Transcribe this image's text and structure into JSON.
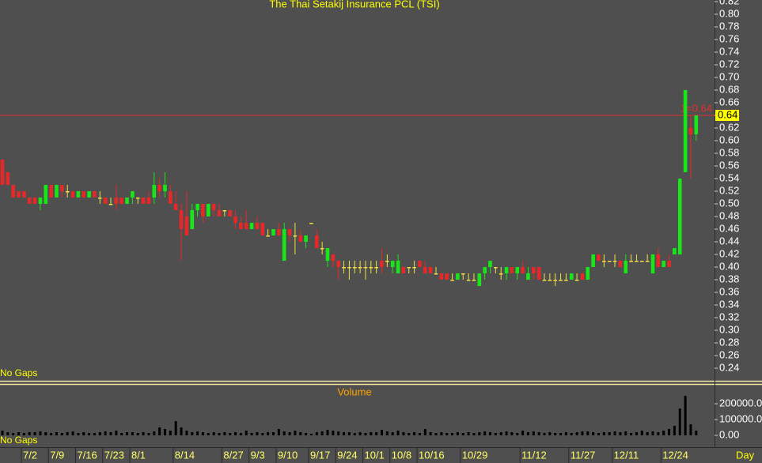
{
  "chart_data": {
    "type": "candlestick",
    "title": "The Thai Setakij Insurance PCL (TSI)",
    "x_unit": "Day",
    "gap_label": "No Gaps",
    "colors": {
      "up": "#19e619",
      "down": "#e62828",
      "flat": "#f0e040"
    },
    "categories": [
      null,
      null,
      null,
      null,
      "7/2",
      null,
      null,
      null,
      null,
      "7/9",
      null,
      null,
      null,
      null,
      "7/16",
      null,
      null,
      null,
      null,
      "7/23",
      null,
      null,
      null,
      null,
      "8/1",
      null,
      null,
      null,
      null,
      null,
      null,
      null,
      "8/14",
      null,
      null,
      null,
      null,
      null,
      null,
      null,
      null,
      "8/27",
      null,
      null,
      null,
      null,
      "9/3",
      null,
      null,
      null,
      null,
      "9/10",
      null,
      null,
      null,
      null,
      null,
      "9/17",
      null,
      null,
      null,
      null,
      "9/24",
      null,
      null,
      null,
      null,
      "10/1",
      null,
      null,
      null,
      null,
      "10/8",
      null,
      null,
      null,
      null,
      "10/16",
      null,
      null,
      null,
      null,
      null,
      null,
      null,
      "10/29",
      null,
      null,
      null,
      null,
      null,
      null,
      null,
      null,
      null,
      null,
      "11/12",
      null,
      null,
      null,
      null,
      null,
      null,
      null,
      null,
      "11/27",
      null,
      null,
      null,
      null,
      null,
      null,
      null,
      "12/11",
      null,
      null,
      null,
      null,
      null,
      null,
      null,
      null,
      "12/24",
      null,
      null,
      null,
      null,
      null,
      null
    ],
    "ohlc": [
      [
        0.57,
        0.57,
        0.53,
        0.53
      ],
      [
        0.55,
        0.55,
        0.53,
        0.53
      ],
      [
        0.53,
        0.53,
        0.51,
        0.51
      ],
      [
        0.52,
        0.52,
        0.51,
        0.51
      ],
      [
        0.52,
        0.52,
        0.51,
        0.51
      ],
      [
        0.51,
        0.51,
        0.5,
        0.5
      ],
      [
        0.51,
        0.51,
        0.5,
        0.5
      ],
      [
        0.5,
        0.51,
        0.49,
        0.51
      ],
      [
        0.5,
        0.53,
        0.5,
        0.53
      ],
      [
        0.53,
        0.53,
        0.51,
        0.51
      ],
      [
        0.51,
        0.53,
        0.51,
        0.53
      ],
      [
        0.53,
        0.53,
        0.51,
        0.52
      ],
      [
        0.52,
        0.53,
        0.51,
        0.52
      ],
      [
        0.52,
        0.52,
        0.51,
        0.51
      ],
      [
        0.51,
        0.52,
        0.51,
        0.52
      ],
      [
        0.52,
        0.52,
        0.51,
        0.51
      ],
      [
        0.51,
        0.52,
        0.51,
        0.52
      ],
      [
        0.52,
        0.52,
        0.51,
        0.51
      ],
      [
        0.51,
        0.52,
        0.5,
        0.51
      ],
      [
        0.51,
        0.51,
        0.5,
        0.5
      ],
      [
        0.5,
        0.51,
        0.5,
        0.5
      ],
      [
        0.51,
        0.53,
        0.49,
        0.5
      ],
      [
        0.51,
        0.51,
        0.5,
        0.5
      ],
      [
        0.5,
        0.51,
        0.5,
        0.51
      ],
      [
        0.51,
        0.52,
        0.5,
        0.52
      ],
      [
        0.51,
        0.51,
        0.5,
        0.51
      ],
      [
        0.51,
        0.51,
        0.5,
        0.5
      ],
      [
        0.51,
        0.52,
        0.5,
        0.5
      ],
      [
        0.51,
        0.55,
        0.5,
        0.53
      ],
      [
        0.53,
        0.54,
        0.51,
        0.52
      ],
      [
        0.52,
        0.55,
        0.51,
        0.53
      ],
      [
        0.52,
        0.53,
        0.5,
        0.5
      ],
      [
        0.5,
        0.52,
        0.49,
        0.49
      ],
      [
        0.49,
        0.5,
        0.41,
        0.46
      ],
      [
        0.48,
        0.52,
        0.45,
        0.45
      ],
      [
        0.46,
        0.5,
        0.46,
        0.49
      ],
      [
        0.49,
        0.5,
        0.48,
        0.5
      ],
      [
        0.5,
        0.5,
        0.47,
        0.48
      ],
      [
        0.48,
        0.5,
        0.48,
        0.5
      ],
      [
        0.5,
        0.5,
        0.48,
        0.49
      ],
      [
        0.49,
        0.5,
        0.48,
        0.48
      ],
      [
        0.49,
        0.49,
        0.48,
        0.49
      ],
      [
        0.49,
        0.49,
        0.48,
        0.48
      ],
      [
        0.48,
        0.49,
        0.46,
        0.47
      ],
      [
        0.47,
        0.48,
        0.46,
        0.46
      ],
      [
        0.47,
        0.49,
        0.46,
        0.46
      ],
      [
        0.46,
        0.47,
        0.46,
        0.47
      ],
      [
        0.47,
        0.48,
        0.46,
        0.46
      ],
      [
        0.47,
        0.47,
        0.45,
        0.45
      ],
      [
        0.45,
        0.46,
        0.45,
        0.45
      ],
      [
        0.45,
        0.46,
        0.45,
        0.46
      ],
      [
        0.46,
        0.47,
        0.45,
        0.45
      ],
      [
        0.41,
        0.47,
        0.41,
        0.46
      ],
      [
        0.46,
        0.46,
        0.44,
        0.45
      ],
      [
        0.45,
        0.47,
        0.42,
        0.45
      ],
      [
        0.45,
        0.46,
        0.44,
        0.44
      ],
      [
        0.44,
        0.45,
        0.43,
        0.45
      ],
      [
        0.47,
        0.47,
        0.47,
        0.47
      ],
      [
        0.45,
        0.46,
        0.43,
        0.43
      ],
      [
        0.43,
        0.44,
        0.42,
        0.43
      ],
      [
        0.41,
        0.43,
        0.4,
        0.43
      ],
      [
        0.42,
        0.42,
        0.4,
        0.41
      ],
      [
        0.41,
        0.41,
        0.38,
        0.4
      ],
      [
        0.4,
        0.41,
        0.39,
        0.4
      ],
      [
        0.4,
        0.41,
        0.38,
        0.4
      ],
      [
        0.4,
        0.41,
        0.39,
        0.4
      ],
      [
        0.4,
        0.41,
        0.39,
        0.4
      ],
      [
        0.4,
        0.41,
        0.38,
        0.4
      ],
      [
        0.4,
        0.41,
        0.39,
        0.4
      ],
      [
        0.4,
        0.41,
        0.39,
        0.4
      ],
      [
        0.41,
        0.43,
        0.39,
        0.4
      ],
      [
        0.41,
        0.42,
        0.4,
        0.41
      ],
      [
        0.4,
        0.41,
        0.39,
        0.41
      ],
      [
        0.39,
        0.42,
        0.39,
        0.41
      ],
      [
        0.4,
        0.4,
        0.39,
        0.39
      ],
      [
        0.4,
        0.4,
        0.39,
        0.4
      ],
      [
        0.4,
        0.41,
        0.39,
        0.4
      ],
      [
        0.41,
        0.41,
        0.4,
        0.4
      ],
      [
        0.4,
        0.41,
        0.39,
        0.39
      ],
      [
        0.4,
        0.4,
        0.39,
        0.39
      ],
      [
        0.39,
        0.4,
        0.39,
        0.39
      ],
      [
        0.39,
        0.39,
        0.38,
        0.38
      ],
      [
        0.39,
        0.39,
        0.38,
        0.38
      ],
      [
        0.38,
        0.39,
        0.38,
        0.38
      ],
      [
        0.38,
        0.39,
        0.38,
        0.39
      ],
      [
        0.39,
        0.39,
        0.38,
        0.39
      ],
      [
        0.38,
        0.39,
        0.38,
        0.38
      ],
      [
        0.38,
        0.39,
        0.38,
        0.38
      ],
      [
        0.37,
        0.39,
        0.37,
        0.39
      ],
      [
        0.39,
        0.4,
        0.38,
        0.4
      ],
      [
        0.4,
        0.41,
        0.39,
        0.41
      ],
      [
        0.4,
        0.4,
        0.39,
        0.4
      ],
      [
        0.39,
        0.4,
        0.38,
        0.39
      ],
      [
        0.39,
        0.4,
        0.38,
        0.4
      ],
      [
        0.4,
        0.4,
        0.39,
        0.39
      ],
      [
        0.39,
        0.4,
        0.38,
        0.4
      ],
      [
        0.4,
        0.41,
        0.39,
        0.39
      ],
      [
        0.38,
        0.4,
        0.38,
        0.39
      ],
      [
        0.4,
        0.4,
        0.38,
        0.39
      ],
      [
        0.4,
        0.4,
        0.38,
        0.38
      ],
      [
        0.38,
        0.39,
        0.38,
        0.38
      ],
      [
        0.38,
        0.39,
        0.38,
        0.38
      ],
      [
        0.38,
        0.39,
        0.37,
        0.38
      ],
      [
        0.38,
        0.39,
        0.38,
        0.38
      ],
      [
        0.38,
        0.39,
        0.38,
        0.38
      ],
      [
        0.38,
        0.39,
        0.38,
        0.39
      ],
      [
        0.38,
        0.39,
        0.38,
        0.38
      ],
      [
        0.39,
        0.39,
        0.38,
        0.38
      ],
      [
        0.38,
        0.4,
        0.38,
        0.4
      ],
      [
        0.4,
        0.42,
        0.4,
        0.42
      ],
      [
        0.42,
        0.42,
        0.41,
        0.41
      ],
      [
        0.41,
        0.42,
        0.4,
        0.41
      ],
      [
        0.41,
        0.41,
        0.41,
        0.41
      ],
      [
        0.41,
        0.42,
        0.4,
        0.41
      ],
      [
        0.41,
        0.41,
        0.4,
        0.4
      ],
      [
        0.39,
        0.42,
        0.39,
        0.41
      ],
      [
        0.41,
        0.42,
        0.41,
        0.41
      ],
      [
        0.41,
        0.42,
        0.41,
        0.41
      ],
      [
        0.41,
        0.41,
        0.41,
        0.41
      ],
      [
        0.41,
        0.42,
        0.41,
        0.41
      ],
      [
        0.39,
        0.42,
        0.39,
        0.42
      ],
      [
        0.42,
        0.43,
        0.4,
        0.4
      ],
      [
        0.4,
        0.41,
        0.4,
        0.41
      ],
      [
        0.41,
        0.42,
        0.4,
        0.4
      ],
      [
        0.42,
        0.43,
        0.42,
        0.43
      ],
      [
        0.42,
        0.54,
        0.42,
        0.54
      ],
      [
        0.55,
        0.68,
        0.55,
        0.68
      ],
      [
        0.62,
        0.64,
        0.54,
        0.61
      ],
      [
        0.61,
        0.64,
        0.6,
        0.64
      ]
    ],
    "ylim": [
      0.22,
      0.8225
    ],
    "yticks": [
      0.24,
      0.26,
      0.28,
      {
        "value": 0.3,
        "label": "0.30"
      },
      0.32,
      0.34,
      0.36,
      0.38,
      {
        "value": 0.4,
        "label": "0.40"
      },
      0.42,
      0.44,
      0.46,
      0.48,
      {
        "value": 0.5,
        "label": "0.50"
      },
      0.52,
      0.54,
      0.56,
      0.58,
      {
        "value": 0.6,
        "label": "0.60"
      },
      0.62,
      0.64,
      0.66,
      0.68,
      {
        "value": 0.7,
        "label": "0.70"
      },
      0.72,
      0.74,
      0.76,
      0.78,
      {
        "value": 0.8,
        "label": "0.80"
      },
      0.82
    ],
    "marker_line": {
      "value": 0.64,
      "label": "1=0.64",
      "color": "#e03030"
    },
    "volume": {
      "title": "Volume",
      "gap_label": "No Gaps",
      "color": "#000000",
      "values": [
        30000,
        20000,
        15000,
        20000,
        15000,
        20000,
        20000,
        25000,
        20000,
        15000,
        20000,
        15000,
        20000,
        25000,
        15000,
        20000,
        15000,
        15000,
        20000,
        25000,
        20000,
        30000,
        15000,
        20000,
        20000,
        15000,
        20000,
        15000,
        25000,
        50000,
        40000,
        30000,
        90000,
        50000,
        30000,
        20000,
        25000,
        20000,
        15000,
        20000,
        15000,
        20000,
        15000,
        20000,
        15000,
        30000,
        15000,
        20000,
        15000,
        20000,
        20000,
        40000,
        25000,
        20000,
        30000,
        20000,
        15000,
        10000,
        20000,
        25000,
        35000,
        30000,
        25000,
        20000,
        20000,
        15000,
        20000,
        15000,
        20000,
        20000,
        35000,
        25000,
        20000,
        30000,
        20000,
        15000,
        20000,
        15000,
        40000,
        20000,
        15000,
        20000,
        15000,
        15000,
        20000,
        15000,
        20000,
        15000,
        20000,
        25000,
        20000,
        15000,
        20000,
        25000,
        20000,
        15000,
        30000,
        20000,
        25000,
        20000,
        15000,
        20000,
        15000,
        15000,
        20000,
        15000,
        20000,
        25000,
        25000,
        20000,
        15000,
        20000,
        20000,
        25000,
        20000,
        25000,
        15000,
        20000,
        30000,
        20000,
        25000,
        20000,
        30000,
        40000,
        60000,
        170000,
        250000,
        70000,
        30000
      ],
      "ylim": [
        0,
        300000
      ],
      "yticks": [
        {
          "value": 0,
          "label": "0.00"
        },
        {
          "value": 100000,
          "label": "100000.0"
        },
        {
          "value": 200000,
          "label": "200000.0"
        }
      ]
    }
  }
}
